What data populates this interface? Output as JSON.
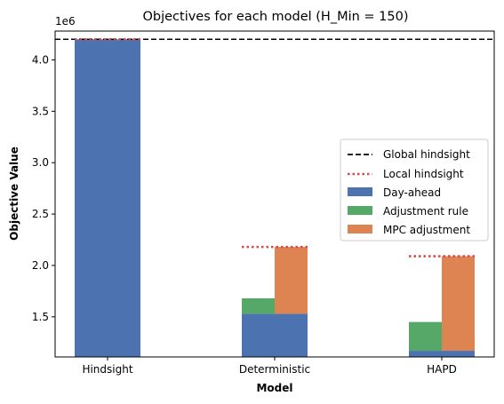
{
  "chart_data": {
    "type": "bar",
    "stacked": true,
    "title": "Objectives for each model (H_Min = 150)",
    "xlabel": "Model",
    "ylabel": "Objective Value",
    "offset_text": "1e6",
    "ylim": [
      1.11,
      4.28
    ],
    "yticks": [
      1.5,
      2.0,
      2.5,
      3.0,
      3.5,
      4.0
    ],
    "ytick_labels": [
      "1.5",
      "2.0",
      "2.5",
      "3.0",
      "3.5",
      "4.0"
    ],
    "categories": [
      "Hindsight",
      "Deterministic",
      "HAPD"
    ],
    "series": [
      {
        "name": "Day-ahead",
        "color": "#4c72b0",
        "bars": [
          {
            "category": "Hindsight",
            "side": "left",
            "bottom": 1.11,
            "top": 4.2
          },
          {
            "category": "Hindsight",
            "side": "right",
            "bottom": 1.11,
            "top": 4.2
          },
          {
            "category": "Deterministic",
            "side": "left",
            "bottom": 1.11,
            "top": 1.53
          },
          {
            "category": "Deterministic",
            "side": "right",
            "bottom": 1.11,
            "top": 1.53
          },
          {
            "category": "HAPD",
            "side": "left",
            "bottom": 1.11,
            "top": 1.17
          },
          {
            "category": "HAPD",
            "side": "right",
            "bottom": 1.11,
            "top": 1.17
          }
        ]
      },
      {
        "name": "Adjustment rule",
        "color": "#55a868",
        "bars": [
          {
            "category": "Deterministic",
            "side": "left",
            "bottom": 1.53,
            "top": 1.68
          },
          {
            "category": "HAPD",
            "side": "left",
            "bottom": 1.17,
            "top": 1.45
          }
        ]
      },
      {
        "name": "MPC adjustment",
        "color": "#dd8452",
        "bars": [
          {
            "category": "Deterministic",
            "side": "right",
            "bottom": 1.53,
            "top": 2.18
          },
          {
            "category": "HAPD",
            "side": "right",
            "bottom": 1.17,
            "top": 2.09
          }
        ]
      }
    ],
    "global_hindsight": {
      "name": "Global hindsight",
      "value": 4.2,
      "color": "#000000",
      "style": "dashed"
    },
    "local_hindsight": {
      "name": "Local hindsight",
      "color": "#d94a4a",
      "style": "dotted",
      "values": [
        {
          "category": "Hindsight",
          "value": 4.2
        },
        {
          "category": "Deterministic",
          "value": 2.18
        },
        {
          "category": "HAPD",
          "value": 2.09
        }
      ]
    },
    "legend": [
      "Global hindsight",
      "Local hindsight",
      "Day-ahead",
      "Adjustment rule",
      "MPC adjustment"
    ],
    "legend_position": "center-right"
  }
}
